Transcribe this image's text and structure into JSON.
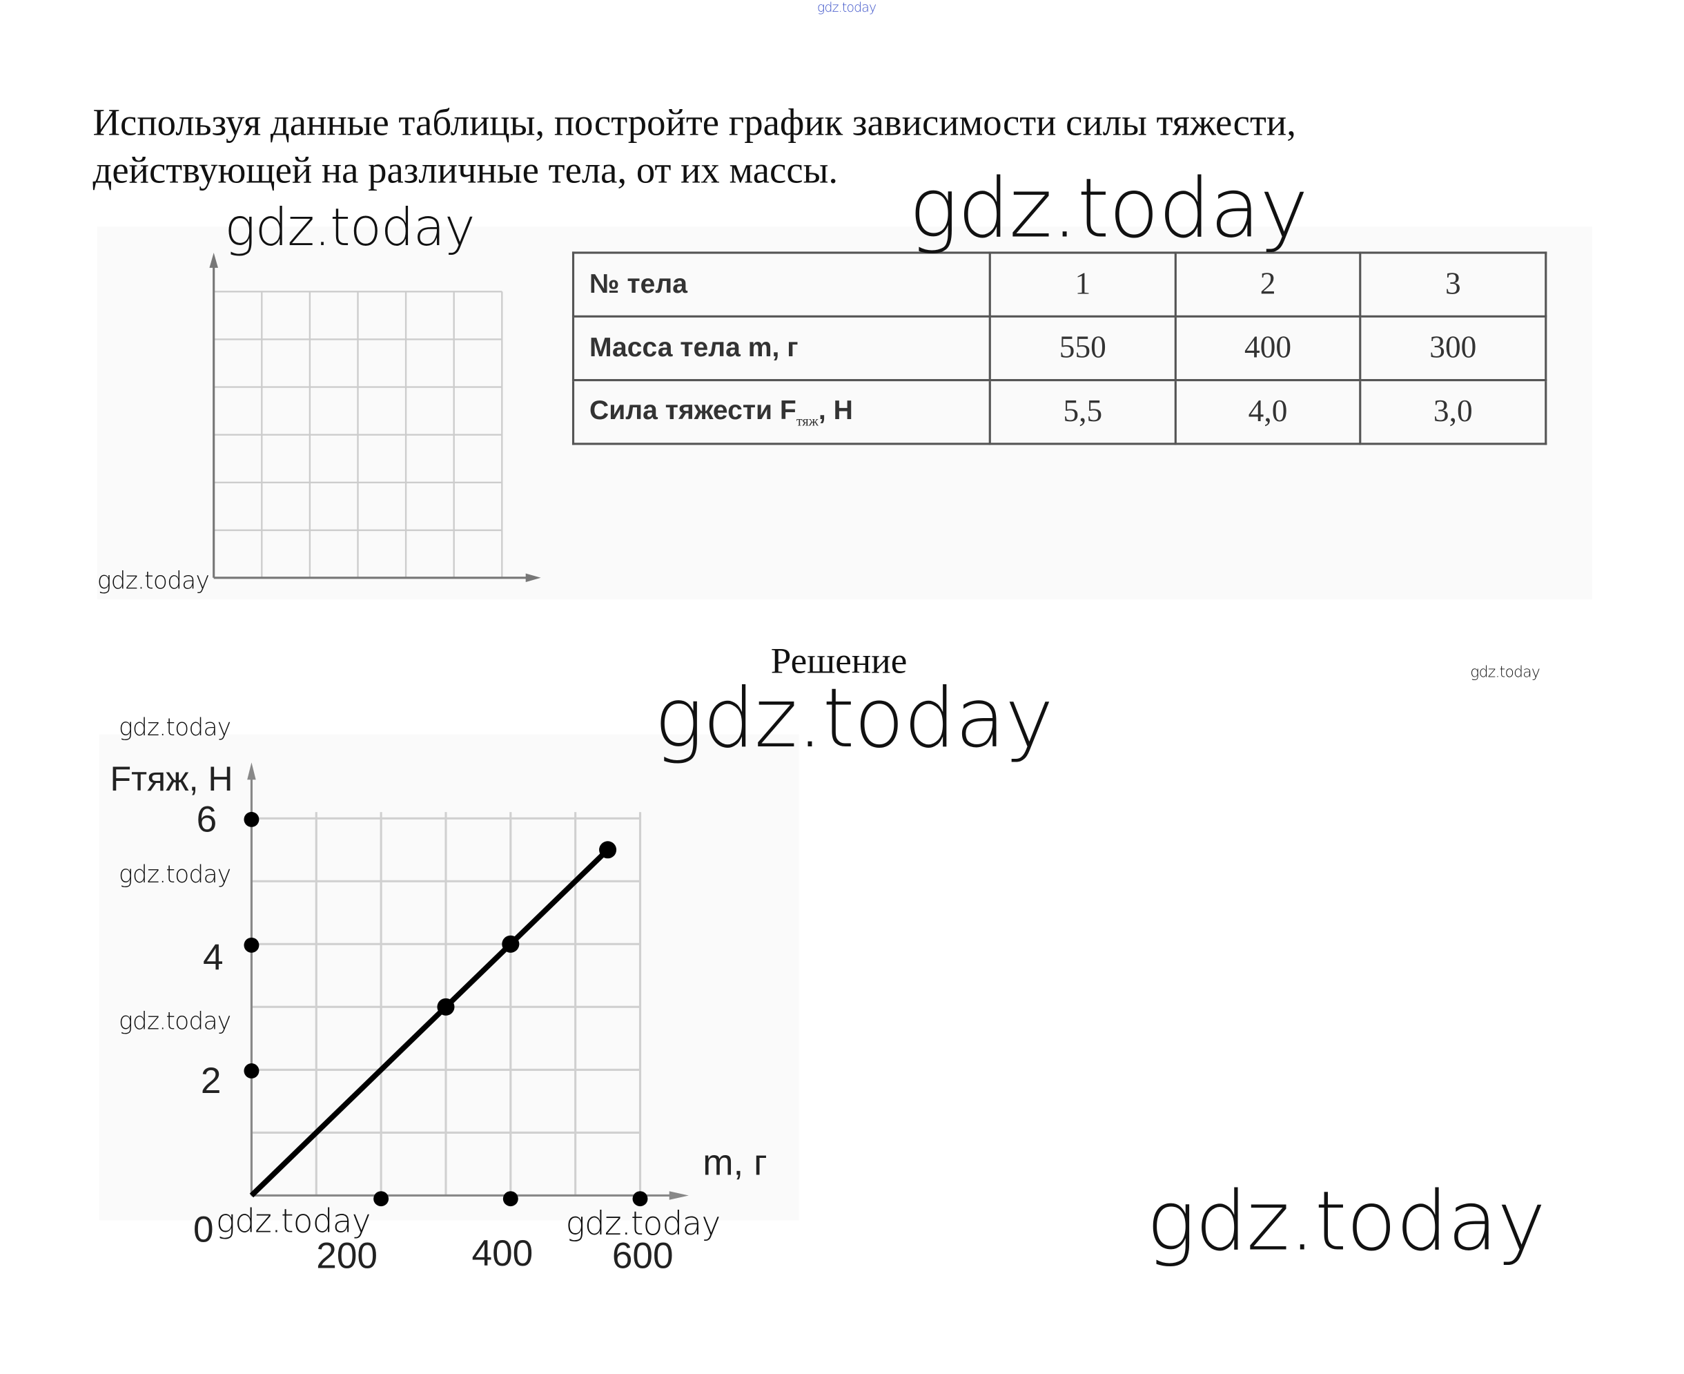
{
  "watermarks": {
    "top_small": "gdz.today",
    "big_top": "gdz.today",
    "grid_top": "gdz.today",
    "grid_corner": "gdz.today",
    "solution_big": "gdz.today",
    "solution_right_small": "gdz.today",
    "chart_1": "gdz.today",
    "chart_2": "gdz.today",
    "chart_3": "gdz.today",
    "chart_bottom_left": "gdz.today",
    "chart_bottom_right": "gdz.today",
    "bottom_big": "gdz.today"
  },
  "task": {
    "line1": "Используя данные таблицы, постройте график зависимости силы тяжести,",
    "line2": "действующей на различные тела, от их массы."
  },
  "table": {
    "rows": [
      {
        "label": "№ тела",
        "values": [
          "1",
          "2",
          "3"
        ]
      },
      {
        "label": "Масса тела m, г",
        "values": [
          "550",
          "400",
          "300"
        ]
      },
      {
        "label_main": "Сила тяжести F",
        "label_sub": "тяж",
        "label_end": ", Н",
        "values": [
          "5,5",
          "4,0",
          "3,0"
        ]
      }
    ]
  },
  "solution_title": "Решение",
  "chart_data": {
    "type": "line",
    "xlabel": "m, г",
    "ylabel": "Fтяж, Н",
    "xlim": [
      0,
      600
    ],
    "ylim": [
      0,
      6
    ],
    "x_origin_label": "0",
    "x_ticks": [
      "200",
      "400",
      "600"
    ],
    "y_ticks": [
      "2",
      "4",
      "6"
    ],
    "grid": true,
    "x_tick_values": [
      200,
      400,
      600
    ],
    "y_tick_values": [
      2,
      4,
      6
    ],
    "series": [
      {
        "x": [
          0,
          300,
          400,
          550
        ],
        "y": [
          0,
          3,
          4,
          5.5
        ]
      }
    ]
  }
}
